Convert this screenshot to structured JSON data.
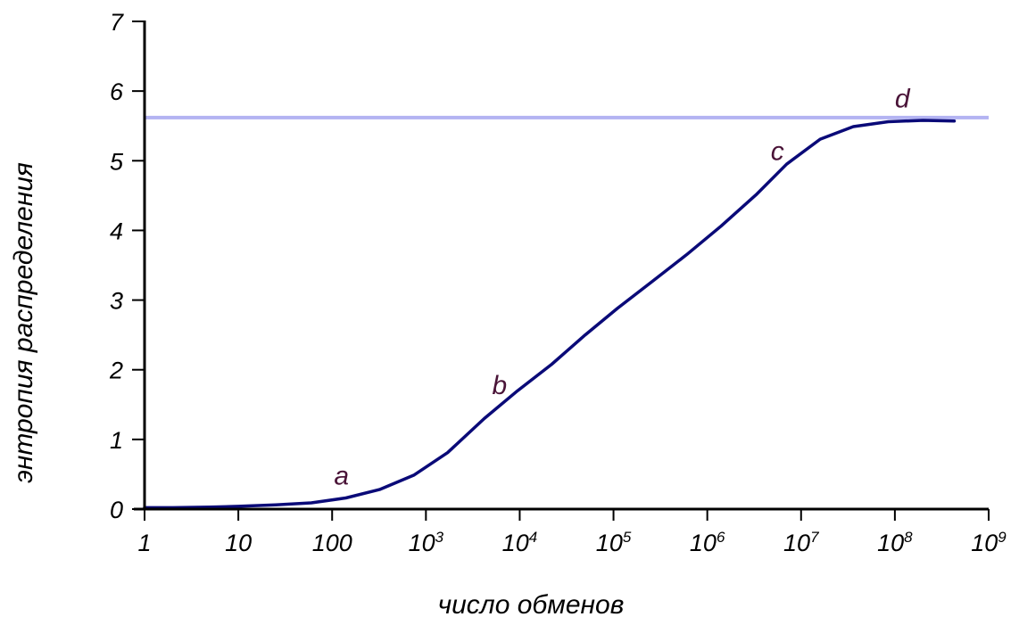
{
  "chart_data": {
    "type": "line",
    "xlabel": "число обменов",
    "ylabel": "энтропия распределения",
    "x_scale": "log",
    "xlim": [
      1,
      1000000000
    ],
    "ylim": [
      0,
      7
    ],
    "x_ticks": [
      {
        "value": 1,
        "base": "1",
        "exp": ""
      },
      {
        "value": 10,
        "base": "10",
        "exp": ""
      },
      {
        "value": 100,
        "base": "100",
        "exp": ""
      },
      {
        "value": 1000,
        "base": "10",
        "exp": "3"
      },
      {
        "value": 10000,
        "base": "10",
        "exp": "4"
      },
      {
        "value": 100000,
        "base": "10",
        "exp": "5"
      },
      {
        "value": 1000000,
        "base": "10",
        "exp": "6"
      },
      {
        "value": 10000000,
        "base": "10",
        "exp": "7"
      },
      {
        "value": 100000000,
        "base": "10",
        "exp": "8"
      },
      {
        "value": 1000000000,
        "base": "10",
        "exp": "9"
      }
    ],
    "y_ticks": [
      "0",
      "1",
      "2",
      "3",
      "4",
      "5",
      "6",
      "7"
    ],
    "grid": false,
    "reference_line": {
      "y": 5.62,
      "color": "#b3b3f2"
    },
    "series": [
      {
        "color": "#0a0a78",
        "x": [
          1,
          2,
          5,
          10,
          25,
          60,
          140,
          320,
          750,
          1700,
          4200,
          9500,
          22000,
          50000,
          110000,
          260000,
          600000,
          1400000,
          3300000,
          7000000,
          16000000,
          36000000,
          85000000,
          200000000,
          430000000
        ],
        "y": [
          0.02,
          0.02,
          0.03,
          0.04,
          0.06,
          0.09,
          0.16,
          0.28,
          0.49,
          0.81,
          1.3,
          1.7,
          2.08,
          2.5,
          2.88,
          3.27,
          3.65,
          4.06,
          4.51,
          4.95,
          5.31,
          5.49,
          5.56,
          5.58,
          5.57
        ]
      }
    ],
    "annotations": [
      {
        "text": "a",
        "x": 126,
        "y": 0.48
      },
      {
        "text": "b",
        "x": 6100,
        "y": 1.78
      },
      {
        "text": "c",
        "x": 5600000,
        "y": 5.14
      },
      {
        "text": "d",
        "x": 120000000,
        "y": 5.89
      }
    ]
  },
  "colors": {
    "axis": "#000000",
    "annotation": "#4a1438"
  }
}
